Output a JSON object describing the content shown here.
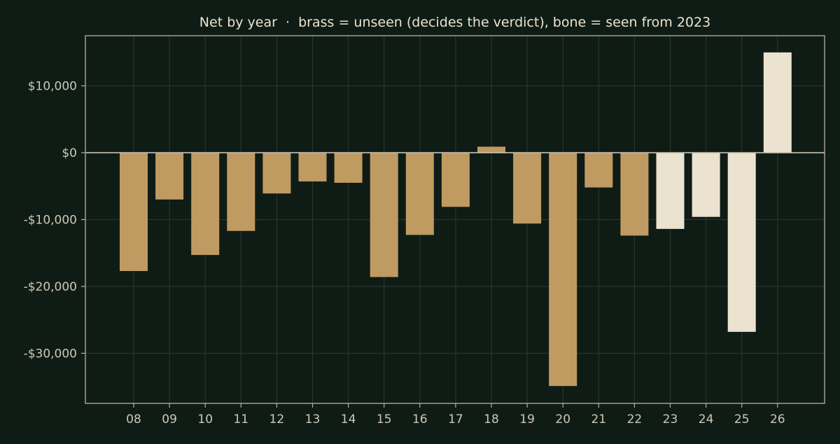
{
  "chart_data": {
    "type": "bar",
    "title": "Net by year  ·  brass = unseen (decides the verdict), bone = seen from 2023",
    "xlabel": "",
    "ylabel": "",
    "categories": [
      "08",
      "09",
      "10",
      "11",
      "12",
      "13",
      "14",
      "15",
      "16",
      "17",
      "18",
      "19",
      "20",
      "21",
      "22",
      "23",
      "24",
      "25",
      "26"
    ],
    "values": [
      -17700,
      -7000,
      -15300,
      -11700,
      -6100,
      -4300,
      -4500,
      -18600,
      -12300,
      -8100,
      900,
      -10600,
      -34900,
      -5200,
      -12400,
      -11400,
      -9600,
      -26800,
      15000
    ],
    "seen": [
      false,
      false,
      false,
      false,
      false,
      false,
      false,
      false,
      false,
      false,
      false,
      false,
      false,
      false,
      false,
      true,
      true,
      true,
      true
    ],
    "ylim": [
      -37500,
      17500
    ],
    "yticks": [
      10000,
      0,
      -10000,
      -20000,
      -30000
    ],
    "ytick_labels": [
      "$10,000",
      "$0",
      "-$10,000",
      "-$20,000",
      "-$30,000"
    ],
    "grid": true,
    "colors": {
      "unseen": "#bf9b62",
      "seen": "#ebe2d0",
      "background": "#0f1c16",
      "axis": "#b9b39f",
      "grid": "#2a3a30",
      "zero_line": "#c8c2ad"
    }
  }
}
